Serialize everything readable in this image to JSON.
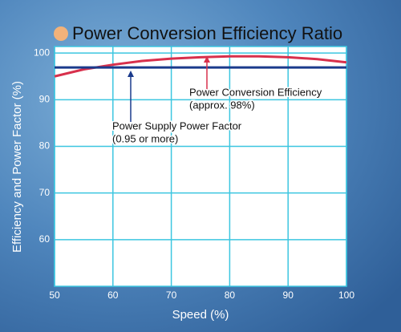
{
  "chart_data": {
    "type": "line",
    "title": "Power Conversion Efficiency Ratio",
    "x_label": "Speed (%)",
    "y_label": "Efficiency and Power Factor (%)",
    "x": [
      50,
      55,
      60,
      65,
      70,
      75,
      80,
      85,
      90,
      95,
      100
    ],
    "series": [
      {
        "color": "#d8304c",
        "values": [
          95,
          96.5,
          97.5,
          98.3,
          98.8,
          99.1,
          99.3,
          99.3,
          99.1,
          98.7,
          98
        ]
      },
      {
        "color": "#1a3a8c",
        "values": [
          96.9,
          96.9,
          96.9,
          96.9,
          96.9,
          96.9,
          96.9,
          96.9,
          96.9,
          96.9,
          96.9
        ]
      }
    ],
    "annotations": [
      {
        "lines": [
          "Power Conversion Efficiency",
          "(approx. 98%)"
        ]
      },
      {
        "lines": [
          "Power Supply Power Factor",
          "(0.95 or more)"
        ]
      }
    ],
    "xlim": [
      50,
      100
    ],
    "xticks": [
      50,
      60,
      70,
      80,
      90,
      100
    ],
    "ylim": [
      50,
      101.4
    ],
    "yticks": [
      60,
      70,
      80,
      90,
      100
    ],
    "grid": true
  }
}
